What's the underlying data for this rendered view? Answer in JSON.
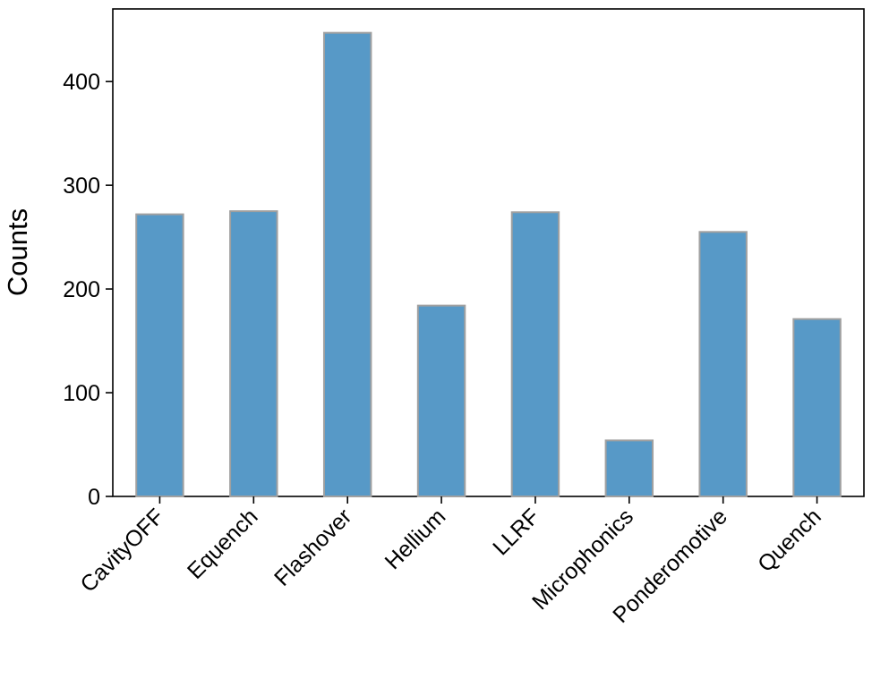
{
  "chart_data": {
    "type": "bar",
    "title": "",
    "xlabel": "",
    "ylabel": "Counts",
    "categories": [
      "CavityOFF",
      "Equench",
      "Flashover",
      "Hellium",
      "LLRF",
      "Microphonics",
      "Ponderomotive",
      "Quench"
    ],
    "values": [
      272,
      275,
      447,
      184,
      274,
      54,
      255,
      171
    ],
    "ylim": [
      0,
      470
    ],
    "yticks": [
      0,
      100,
      200,
      300,
      400
    ],
    "grid": false,
    "colors": {
      "bar_fill": "#5799c7",
      "bar_edge": "#a0a0a0",
      "axis": "#000000"
    }
  }
}
